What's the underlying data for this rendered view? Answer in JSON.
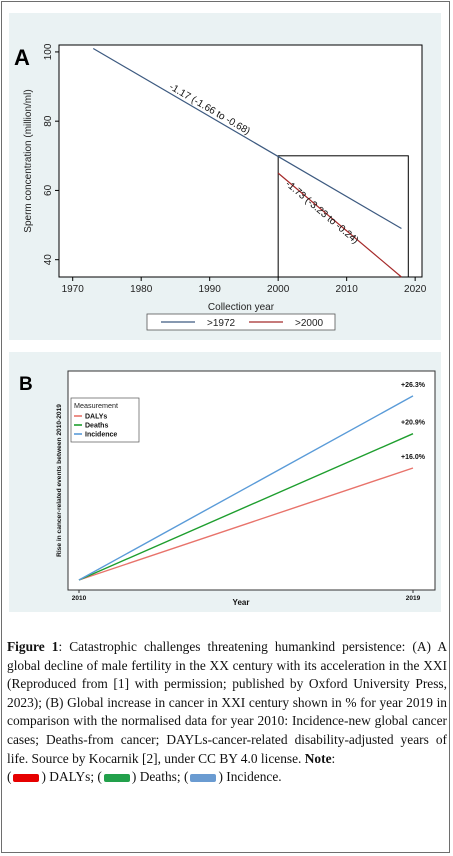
{
  "chart_data": [
    {
      "panel_letter": "A",
      "type": "line",
      "xlabel": "Collection year",
      "ylabel": "Sperm concentration (million/ml)",
      "xlim": [
        1968,
        2021
      ],
      "ylim": [
        35,
        102
      ],
      "x_ticks": [
        "1970",
        "1980",
        "1990",
        "2000",
        "2010",
        "2020"
      ],
      "y_ticks": [
        "40",
        "60",
        "80",
        "100"
      ],
      "series": [
        {
          "name": ">1972",
          "color": "#3d5a80",
          "x": [
            1973,
            2018
          ],
          "y": [
            101,
            49
          ]
        },
        {
          "name": ">2000",
          "color": "#a52a2a",
          "x": [
            2000,
            2018
          ],
          "y": [
            65,
            35
          ]
        }
      ],
      "annotations": [
        "-1.17 (-1.66 to -0.68)",
        "-1.73 (-3.23 to -0.24)"
      ],
      "legend_position": "bottom"
    },
    {
      "panel_letter": "B",
      "type": "line",
      "xlabel": "Year",
      "ylabel": "Rise in cancer-related events between 2010-2019",
      "x": [
        "2010",
        "2019"
      ],
      "ylim": [
        0,
        30
      ],
      "legend_title": "Measurement",
      "legend_position": "top-left",
      "series": [
        {
          "name": "DALYs",
          "color": "#e8736b",
          "values": [
            0,
            16.0
          ],
          "end_label": "+16.0%"
        },
        {
          "name": "Deaths",
          "color": "#1e9e2e",
          "values": [
            0,
            20.9
          ],
          "end_label": "+20.9%"
        },
        {
          "name": "Incidence",
          "color": "#5a9bd8",
          "values": [
            0,
            26.3
          ],
          "end_label": "+26.3%"
        }
      ]
    }
  ],
  "caption": {
    "label": "Figure 1",
    "text": ": Catastrophic challenges threatening humankind persistence: (A) A global decline of male fertility in the XX century with its acceleration in the XXI (Reproduced from [1] with permission; published by Oxford University Press, 2023); (B) Global increase in cancer in XXI century shown in % for year 2019 in comparison with the normalised data for year 2010: Incidence-new global cancer cases; Deaths-from cancer; DAYLs-cancer-related disability-adjusted years of life. Source by Kocarnik [2], under CC BY 4.0 license. ",
    "note_label": "Note",
    "note_colon": ":",
    "note_text": [
      {
        "open": "(",
        "color": "#e60000",
        "label": ") DALYs;"
      },
      {
        "open": "(",
        "color": "#22a04b",
        "label": ") Deaths;"
      },
      {
        "open": "(",
        "color": "#6a9bd1",
        "label": ") Incidence."
      }
    ]
  }
}
